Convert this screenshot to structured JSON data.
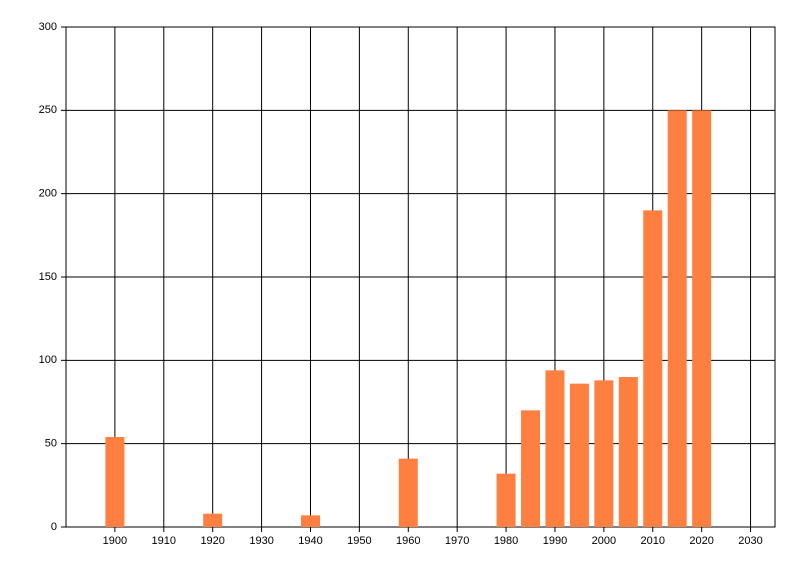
{
  "chart_data": {
    "type": "bar",
    "x": [
      1900,
      1920,
      1940,
      1960,
      1980,
      1985,
      1990,
      1995,
      2000,
      2005,
      2010,
      2015,
      2020
    ],
    "values": [
      54,
      8,
      7,
      41,
      32,
      70,
      94,
      86,
      88,
      90,
      190,
      250,
      250
    ],
    "color": "#ff7f40",
    "xlim": [
      1890,
      2035
    ],
    "xticks": [
      1900,
      1910,
      1920,
      1930,
      1940,
      1950,
      1960,
      1970,
      1980,
      1990,
      2000,
      2010,
      2020,
      2030
    ],
    "ylim": [
      0,
      300
    ],
    "yticks": [
      0,
      50,
      100,
      150,
      200,
      250,
      300
    ],
    "grid": true
  }
}
